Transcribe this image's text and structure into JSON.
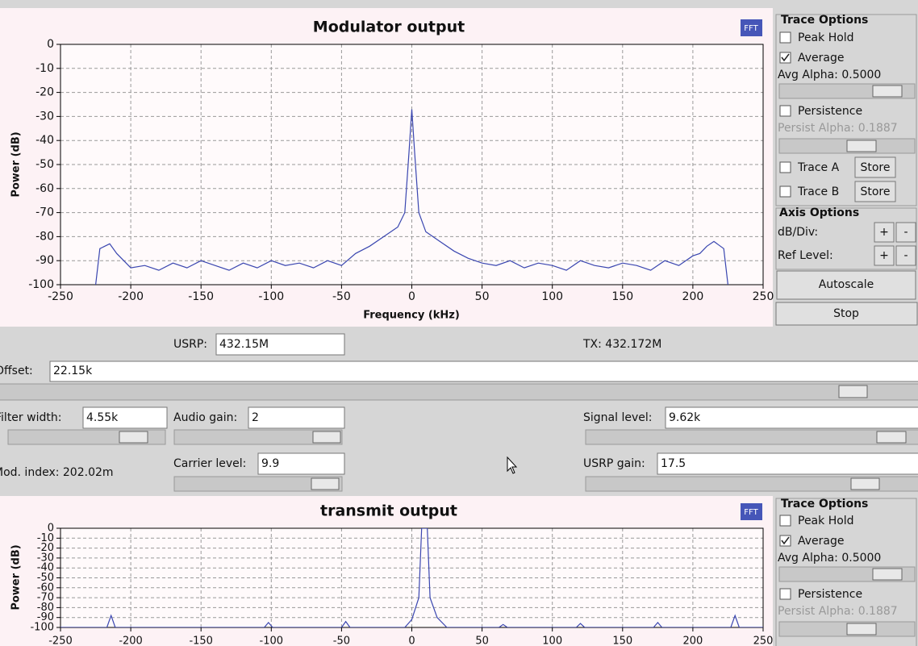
{
  "plots": [
    {
      "type": "line",
      "title": "Modulator output",
      "button": "FFT",
      "ylabel": "Power (dB)",
      "xlabel": "Frequency (kHz)",
      "color": "#3a46b0",
      "grid": true,
      "xlim": [
        -250,
        250
      ],
      "ylim": [
        -100,
        0
      ],
      "xticks": [
        -250,
        -200,
        -150,
        -100,
        -50,
        0,
        50,
        100,
        150,
        200,
        250
      ],
      "yticks": [
        0,
        -10,
        -20,
        -30,
        -40,
        -50,
        -60,
        -70,
        -80,
        -90,
        -100
      ],
      "x": [
        -225,
        -222,
        -215,
        -210,
        -205,
        -200,
        -190,
        -180,
        -170,
        -160,
        -150,
        -140,
        -130,
        -120,
        -110,
        -100,
        -90,
        -80,
        -70,
        -60,
        -50,
        -40,
        -30,
        -20,
        -10,
        -5,
        -2,
        0,
        2,
        5,
        10,
        20,
        30,
        40,
        50,
        60,
        70,
        80,
        90,
        100,
        110,
        120,
        130,
        140,
        150,
        160,
        170,
        180,
        190,
        200,
        205,
        210,
        215,
        222,
        225
      ],
      "values": [
        -100,
        -85,
        -83,
        -87,
        -90,
        -93,
        -92,
        -94,
        -91,
        -93,
        -90,
        -92,
        -94,
        -91,
        -93,
        -90,
        -92,
        -91,
        -93,
        -90,
        -92,
        -87,
        -84,
        -80,
        -76,
        -70,
        -45,
        -27,
        -45,
        -70,
        -78,
        -82,
        -86,
        -89,
        -91,
        -92,
        -90,
        -93,
        -91,
        -92,
        -94,
        -90,
        -92,
        -93,
        -91,
        -92,
        -94,
        -90,
        -92,
        -88,
        -87,
        -84,
        -82,
        -85,
        -100
      ]
    },
    {
      "type": "line",
      "title": "transmit output",
      "button": "FFT",
      "ylabel": "Power (dB)",
      "color": "#3a46b0",
      "grid": true,
      "xlim": [
        -250,
        250
      ],
      "ylim": [
        -100,
        0
      ],
      "xticks": [
        -250,
        -200,
        -150,
        -100,
        -50,
        0,
        50,
        100,
        150,
        200,
        250
      ],
      "yticks": [
        0,
        -10,
        -20,
        -30,
        -40,
        -50,
        -60,
        -70,
        -80,
        -90,
        -100
      ],
      "x": [
        -250,
        -217,
        -214,
        -211,
        -105,
        -102,
        -99,
        -50,
        -47,
        -44,
        -5,
        0,
        5,
        7,
        9,
        11,
        13,
        18,
        25,
        30,
        62,
        65,
        68,
        117,
        120,
        123,
        172,
        175,
        178,
        227,
        230,
        233,
        250
      ],
      "values": [
        -100,
        -100,
        -88,
        -100,
        -100,
        -95,
        -100,
        -100,
        -94,
        -100,
        -100,
        -92,
        -70,
        0,
        0,
        0,
        -70,
        -90,
        -100,
        -100,
        -100,
        -97,
        -100,
        -100,
        -96,
        -100,
        -100,
        -95,
        -100,
        -100,
        -88,
        -100,
        -100
      ]
    }
  ],
  "panels": [
    {
      "heading": "Trace Options",
      "peak_hold": "Peak Hold",
      "average": "Average",
      "avg_alpha": "Avg Alpha: 0.5000",
      "persistence": "Persistence",
      "persist_alpha": "Persist Alpha: 0.1887",
      "trace_a": "Trace A",
      "trace_b": "Trace B",
      "store": "Store",
      "axis_heading": "Axis Options",
      "db_div": "dB/Div:",
      "ref_level": "Ref Level:",
      "plus": "+",
      "minus": "-",
      "autoscale": "Autoscale",
      "stop": "Stop"
    },
    {
      "heading": "Trace Options",
      "peak_hold": "Peak Hold",
      "average": "Average",
      "avg_alpha": "Avg Alpha: 0.5000",
      "persistence": "Persistence",
      "persist_alpha": "Persist Alpha: 0.1887"
    }
  ],
  "controls": {
    "usrp_label": "USRP:",
    "usrp": "432.15M",
    "tx": "TX: 432.172M",
    "offset_label": "Offset:",
    "offset": "22.15k",
    "filter_label": "Filter width:",
    "filter": "4.55k",
    "audio_label": "Audio gain:",
    "audio": "2",
    "signal_label": "Signal level:",
    "signal": "9.62k",
    "mod_index": "Mod. index: 202.02m",
    "carrier_label": "Carrier level:",
    "carrier": "9.9",
    "gain_label": "USRP gain:",
    "gain": "17.5"
  }
}
